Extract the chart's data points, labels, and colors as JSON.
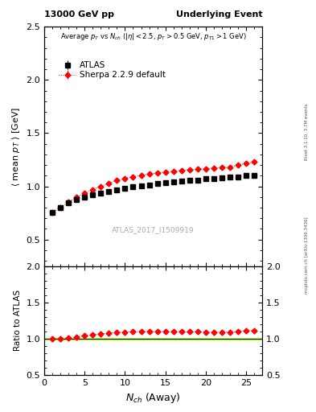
{
  "title_left": "13000 GeV pp",
  "title_right": "Underlying Event",
  "annotation": "Average $p_T$ vs $N_{ch}$ ($|\\eta| < 2.5$, $p_T > 0.5$ GeV, $p_{T1} > 1$ GeV)",
  "watermark": "ATLAS_2017_I1509919",
  "right_label": "Rivet 3.1.10, 3.7M events",
  "right_label2": "mcplots.cern.ch [arXiv:1306.3436]",
  "ylabel_main": "$\\langle$ mean $p_T$ $\\rangle$ [GeV]",
  "ylabel_ratio": "Ratio to ATLAS",
  "xlabel": "$N_{ch}$ (Away)",
  "ylim_main": [
    0.25,
    2.5
  ],
  "ylim_ratio": [
    0.5,
    2.0
  ],
  "xlim": [
    0,
    27
  ],
  "atlas_x": [
    1,
    2,
    3,
    4,
    5,
    6,
    7,
    8,
    9,
    10,
    11,
    12,
    13,
    14,
    15,
    16,
    17,
    18,
    19,
    20,
    21,
    22,
    23,
    24,
    25,
    26
  ],
  "atlas_y": [
    0.755,
    0.8,
    0.845,
    0.875,
    0.9,
    0.92,
    0.94,
    0.955,
    0.97,
    0.985,
    0.995,
    1.005,
    1.015,
    1.025,
    1.035,
    1.04,
    1.05,
    1.055,
    1.06,
    1.07,
    1.075,
    1.08,
    1.085,
    1.09,
    1.1,
    1.105
  ],
  "atlas_yerr": [
    0.01,
    0.008,
    0.007,
    0.006,
    0.006,
    0.005,
    0.005,
    0.005,
    0.005,
    0.004,
    0.004,
    0.004,
    0.004,
    0.004,
    0.004,
    0.004,
    0.004,
    0.004,
    0.004,
    0.004,
    0.004,
    0.004,
    0.004,
    0.004,
    0.004,
    0.004
  ],
  "sherpa_x": [
    1,
    2,
    3,
    4,
    5,
    6,
    7,
    8,
    9,
    10,
    11,
    12,
    13,
    14,
    15,
    16,
    17,
    18,
    19,
    20,
    21,
    22,
    23,
    24,
    25,
    26
  ],
  "sherpa_y": [
    0.755,
    0.8,
    0.855,
    0.895,
    0.935,
    0.97,
    1.0,
    1.03,
    1.055,
    1.075,
    1.09,
    1.105,
    1.115,
    1.125,
    1.135,
    1.14,
    1.15,
    1.155,
    1.16,
    1.165,
    1.17,
    1.175,
    1.18,
    1.2,
    1.215,
    1.23
  ],
  "sherpa_yerr": [
    0.005,
    0.004,
    0.004,
    0.003,
    0.003,
    0.003,
    0.003,
    0.003,
    0.003,
    0.003,
    0.003,
    0.003,
    0.003,
    0.003,
    0.003,
    0.003,
    0.003,
    0.003,
    0.003,
    0.003,
    0.003,
    0.003,
    0.003,
    0.003,
    0.003,
    0.003
  ],
  "ratio_x": [
    1,
    2,
    3,
    4,
    5,
    6,
    7,
    8,
    9,
    10,
    11,
    12,
    13,
    14,
    15,
    16,
    17,
    18,
    19,
    20,
    21,
    22,
    23,
    24,
    25,
    26
  ],
  "ratio_y": [
    1.0,
    1.0,
    1.012,
    1.023,
    1.038,
    1.054,
    1.064,
    1.078,
    1.087,
    1.09,
    1.095,
    1.1,
    1.098,
    1.097,
    1.097,
    1.096,
    1.095,
    1.094,
    1.094,
    1.09,
    1.088,
    1.088,
    1.088,
    1.1,
    1.105,
    1.113
  ],
  "ratio_yerr": [
    0.008,
    0.006,
    0.006,
    0.005,
    0.005,
    0.005,
    0.005,
    0.005,
    0.005,
    0.004,
    0.004,
    0.004,
    0.004,
    0.004,
    0.004,
    0.004,
    0.004,
    0.004,
    0.004,
    0.004,
    0.004,
    0.004,
    0.004,
    0.004,
    0.004,
    0.004
  ],
  "atlas_color": "black",
  "sherpa_color": "red",
  "ref_band_color": "#aaff00"
}
